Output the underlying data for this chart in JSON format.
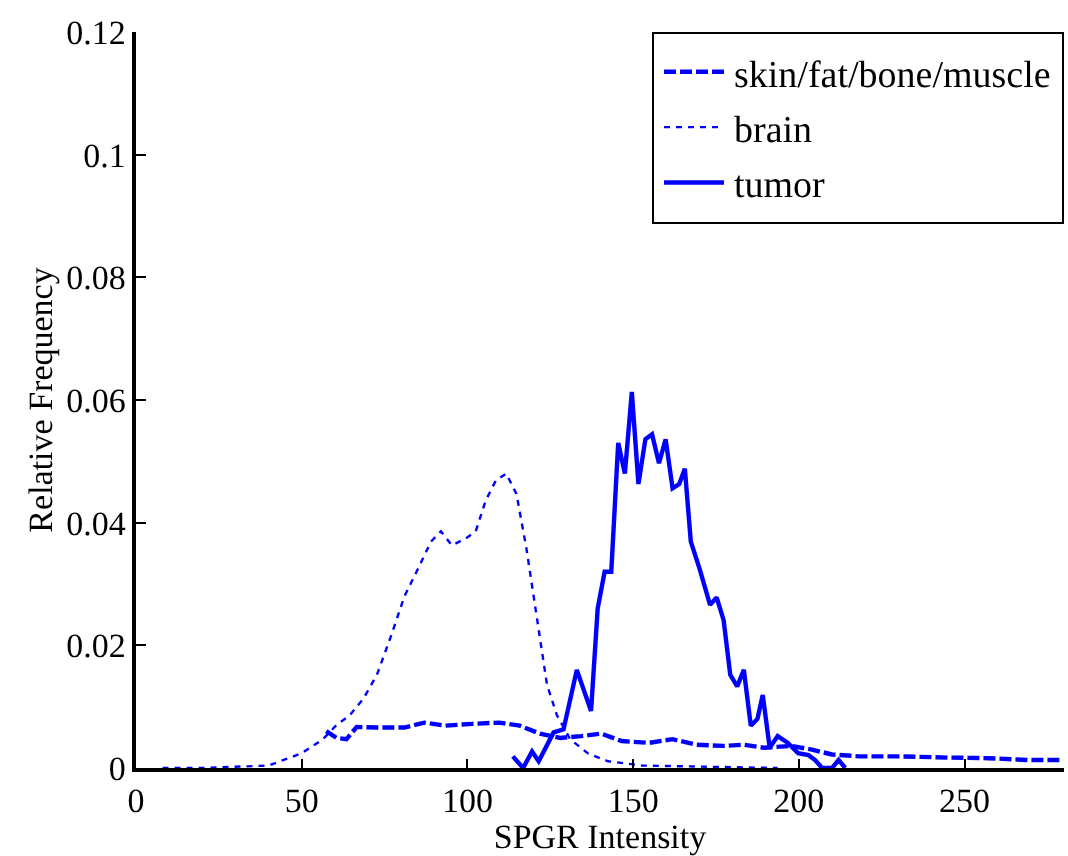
{
  "chart_data": {
    "type": "line",
    "xlabel": "SPGR Intensity",
    "ylabel": "Relative Frequency",
    "xlim": [
      0,
      280
    ],
    "ylim": [
      0,
      0.12
    ],
    "xticks": [
      0,
      50,
      100,
      150,
      200,
      250
    ],
    "yticks": [
      0,
      0.02,
      0.04,
      0.06,
      0.08,
      0.1,
      0.12
    ],
    "grid": false,
    "legend": "top right",
    "marker": "none",
    "series": [
      {
        "name": "skin/fat/bone/muscle",
        "color": "#0000ff",
        "line_style": "dashed",
        "x": [
          57.4,
          60.5,
          63.5,
          66.6,
          72.7,
          81,
          87,
          93.2,
          101.4,
          109.6,
          115.8,
          121.9,
          128,
          134.2,
          140.4,
          146.5,
          154.7,
          161.9,
          169,
          177.3,
          183.4,
          189.5,
          197.7,
          203.9,
          210,
          218.2,
          230.5,
          244.9,
          257.2,
          269.5,
          278.7
        ],
        "values": [
          0.006,
          0.0049,
          0.0047,
          0.0067,
          0.0066,
          0.0066,
          0.0074,
          0.0069,
          0.0072,
          0.0074,
          0.0069,
          0.0056,
          0.0049,
          0.0052,
          0.0056,
          0.0044,
          0.0041,
          0.0047,
          0.0038,
          0.0036,
          0.0038,
          0.0033,
          0.0036,
          0.003,
          0.0022,
          0.0019,
          0.0019,
          0.0017,
          0.0016,
          0.0013,
          0.0013
        ]
      },
      {
        "name": "brain",
        "color": "#0000ff",
        "line_style": "dotted",
        "x": [
          8,
          19.5,
          40,
          50,
          56.4,
          60.5,
          64.5,
          68.6,
          72.7,
          76.8,
          81,
          85,
          89,
          92,
          95.3,
          99.4,
          102.5,
          105.5,
          108.6,
          111.7,
          114.8,
          117.8,
          120.9,
          124,
          127,
          131,
          136.3,
          142.4,
          152.7,
          173,
          193.6
        ],
        "values": [
          0,
          0,
          0.0004,
          0.0024,
          0.0047,
          0.007,
          0.0086,
          0.0113,
          0.0152,
          0.0213,
          0.028,
          0.0324,
          0.0369,
          0.0386,
          0.0363,
          0.0374,
          0.0386,
          0.0436,
          0.0469,
          0.048,
          0.0447,
          0.0358,
          0.0247,
          0.0136,
          0.0086,
          0.0047,
          0.0024,
          0.0011,
          0.0004,
          0.0002,
          0
        ]
      },
      {
        "name": "tumor",
        "color": "#0000ff",
        "line_style": "solid",
        "x": [
          113.7,
          116.8,
          119.5,
          121.5,
          126,
          129,
          133,
          137.3,
          139.3,
          141.4,
          143.4,
          145.5,
          147.5,
          149.6,
          151.6,
          153.7,
          155.7,
          157.8,
          159.8,
          161.9,
          163.9,
          165.6,
          167.4,
          170.1,
          173.2,
          175.2,
          177.3,
          179.3,
          181.4,
          183.4,
          185.5,
          187.5,
          189.1,
          191.2,
          193.6,
          196.7,
          199.8,
          202.9,
          204.9,
          207,
          210,
          212,
          214
        ],
        "values": [
          0.0019,
          0,
          0.0027,
          0.0011,
          0.0058,
          0.0063,
          0.016,
          0.0093,
          0.026,
          0.032,
          0.032,
          0.053,
          0.048,
          0.0613,
          0.0463,
          0.0536,
          0.0544,
          0.0497,
          0.0536,
          0.0456,
          0.0463,
          0.0488,
          0.0369,
          0.0324,
          0.0266,
          0.0278,
          0.0241,
          0.0152,
          0.0133,
          0.016,
          0.0069,
          0.008,
          0.0119,
          0.0033,
          0.0052,
          0.0041,
          0.0024,
          0.0021,
          0.0013,
          0,
          0,
          0.0013,
          0
        ]
      }
    ]
  }
}
